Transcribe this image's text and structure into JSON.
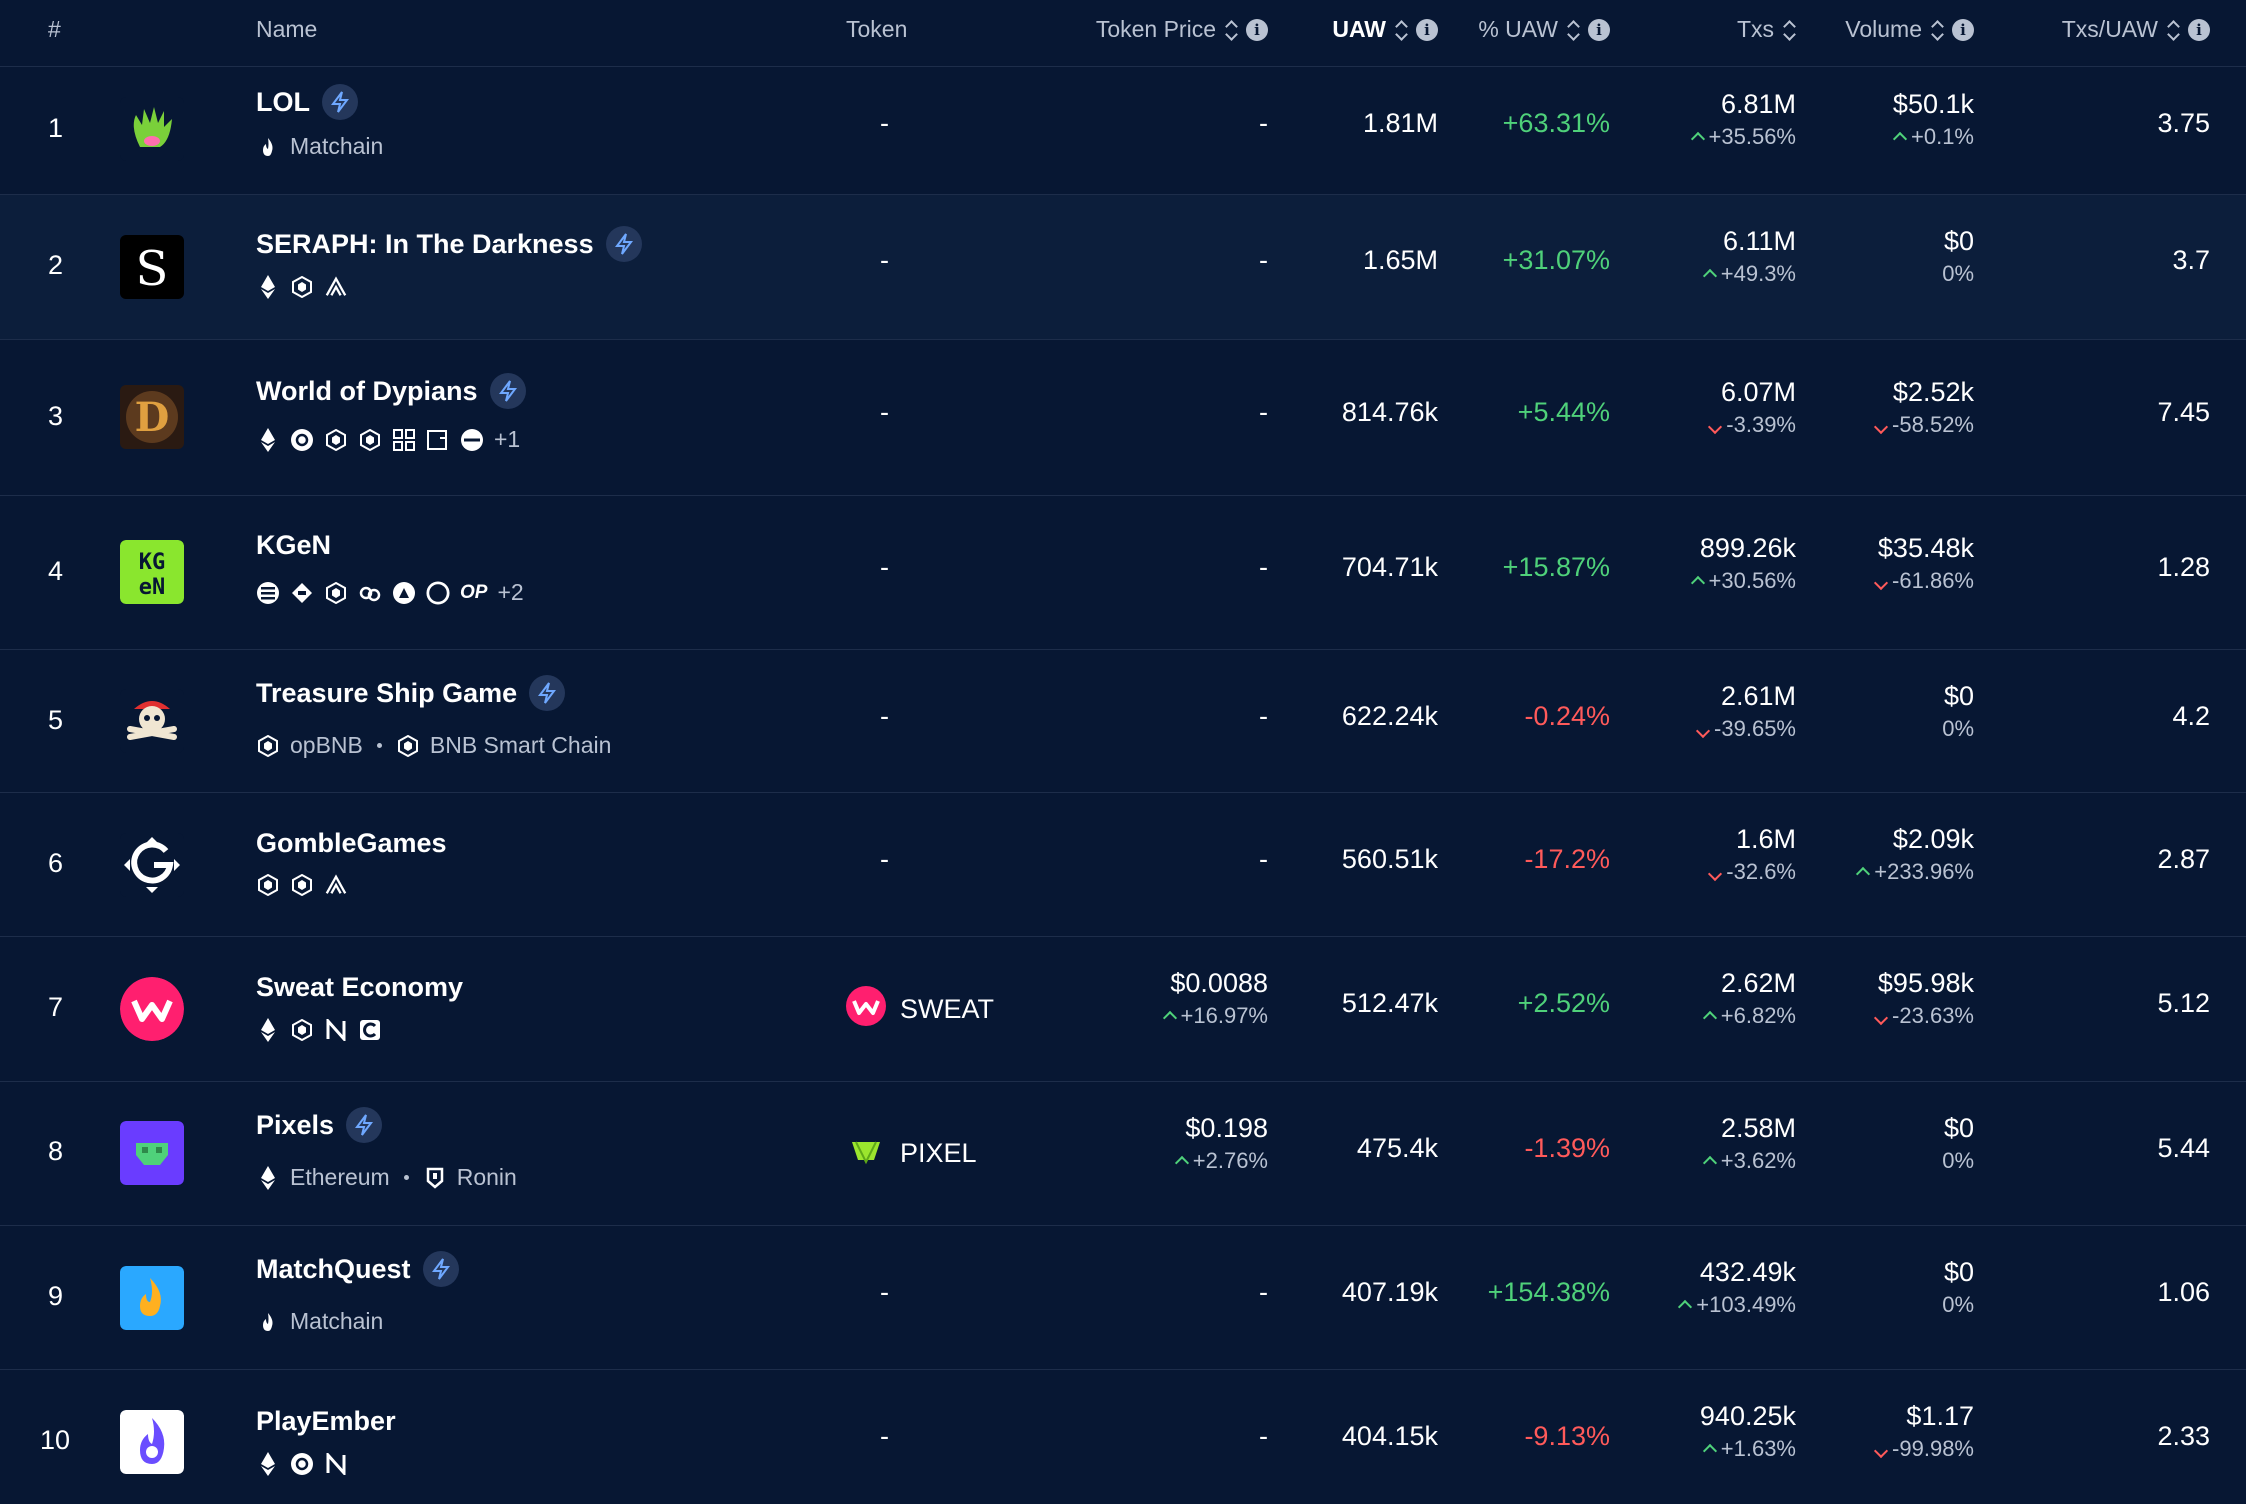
{
  "header": {
    "rank": "#",
    "name": "Name",
    "token": "Token",
    "token_price": "Token Price",
    "uaw": "UAW",
    "pct_uaw": "% UAW",
    "txs": "Txs",
    "volume": "Volume",
    "txs_uaw": "Txs/UAW"
  },
  "rows": [
    {
      "rank": "1",
      "name": "LOL",
      "boosted": true,
      "chains_label": "Matchain",
      "extra": "",
      "token": "-",
      "price": "-",
      "price_change": "",
      "uaw": "1.81M",
      "pct_uaw": "+63.31%",
      "txs": "6.81M",
      "txs_change": "+35.56%",
      "volume": "$50.1k",
      "volume_change": "+0.1%",
      "txs_uaw": "3.75"
    },
    {
      "rank": "2",
      "name": "SERAPH: In The Darkness",
      "boosted": true,
      "chains_label": "",
      "extra": "",
      "token": "-",
      "price": "-",
      "price_change": "",
      "uaw": "1.65M",
      "pct_uaw": "+31.07%",
      "txs": "6.11M",
      "txs_change": "+49.3%",
      "volume": "$0",
      "volume_change": "0%",
      "txs_uaw": "3.7"
    },
    {
      "rank": "3",
      "name": "World of Dypians",
      "boosted": true,
      "chains_label": "",
      "extra": "+1",
      "token": "-",
      "price": "-",
      "price_change": "",
      "uaw": "814.76k",
      "pct_uaw": "+5.44%",
      "txs": "6.07M",
      "txs_change": "-3.39%",
      "volume": "$2.52k",
      "volume_change": "-58.52%",
      "txs_uaw": "7.45"
    },
    {
      "rank": "4",
      "name": "KGeN",
      "boosted": false,
      "chains_label": "OP",
      "extra": "+2",
      "token": "-",
      "price": "-",
      "price_change": "",
      "uaw": "704.71k",
      "pct_uaw": "+15.87%",
      "txs": "899.26k",
      "txs_change": "+30.56%",
      "volume": "$35.48k",
      "volume_change": "-61.86%",
      "txs_uaw": "1.28"
    },
    {
      "rank": "5",
      "name": "Treasure Ship Game",
      "boosted": true,
      "chains_label": "opBNB",
      "chains_label2": "BNB Smart Chain",
      "extra": "",
      "token": "-",
      "price": "-",
      "price_change": "",
      "uaw": "622.24k",
      "pct_uaw": "-0.24%",
      "txs": "2.61M",
      "txs_change": "-39.65%",
      "volume": "$0",
      "volume_change": "0%",
      "txs_uaw": "4.2"
    },
    {
      "rank": "6",
      "name": "GombleGames",
      "boosted": false,
      "chains_label": "",
      "extra": "",
      "token": "-",
      "price": "-",
      "price_change": "",
      "uaw": "560.51k",
      "pct_uaw": "-17.2%",
      "txs": "1.6M",
      "txs_change": "-32.6%",
      "volume": "$2.09k",
      "volume_change": "+233.96%",
      "txs_uaw": "2.87"
    },
    {
      "rank": "7",
      "name": "Sweat Economy",
      "boosted": false,
      "chains_label": "",
      "extra": "",
      "token": "SWEAT",
      "price": "$0.0088",
      "price_change": "+16.97%",
      "uaw": "512.47k",
      "pct_uaw": "+2.52%",
      "txs": "2.62M",
      "txs_change": "+6.82%",
      "volume": "$95.98k",
      "volume_change": "-23.63%",
      "txs_uaw": "5.12"
    },
    {
      "rank": "8",
      "name": "Pixels",
      "boosted": true,
      "chains_label": "Ethereum",
      "chains_label2": "Ronin",
      "extra": "",
      "token": "PIXEL",
      "price": "$0.198",
      "price_change": "+2.76%",
      "uaw": "475.4k",
      "pct_uaw": "-1.39%",
      "txs": "2.58M",
      "txs_change": "+3.62%",
      "volume": "$0",
      "volume_change": "0%",
      "txs_uaw": "5.44"
    },
    {
      "rank": "9",
      "name": "MatchQuest",
      "boosted": true,
      "chains_label": "Matchain",
      "extra": "",
      "token": "-",
      "price": "-",
      "price_change": "",
      "uaw": "407.19k",
      "pct_uaw": "+154.38%",
      "txs": "432.49k",
      "txs_change": "+103.49%",
      "volume": "$0",
      "volume_change": "0%",
      "txs_uaw": "1.06"
    },
    {
      "rank": "10",
      "name": "PlayEmber",
      "boosted": false,
      "chains_label": "",
      "extra": "",
      "token": "-",
      "price": "-",
      "price_change": "",
      "uaw": "404.15k",
      "pct_uaw": "-9.13%",
      "txs": "940.25k",
      "txs_change": "+1.63%",
      "volume": "$1.17",
      "volume_change": "-99.98%",
      "txs_uaw": "2.33"
    }
  ],
  "colors": {
    "background": "#071733",
    "alt_row": "#0c1e3b",
    "positive": "#4fd17a",
    "negative": "#ff5a5a",
    "muted": "#b9c2d2"
  }
}
